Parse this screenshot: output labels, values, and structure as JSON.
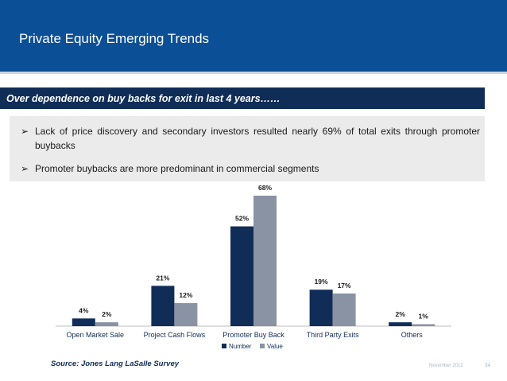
{
  "header": {
    "title": "Private Equity Emerging Trends"
  },
  "banner": {
    "text": "Over dependence on buy backs for exit in last 4 years……"
  },
  "bullets": [
    {
      "arrow": "➢",
      "text": "Lack of price discovery and secondary investors resulted nearly 69% of total exits through promoter buybacks"
    },
    {
      "arrow": "➢",
      "text": "Promoter buybacks are more predominant in commercial segments"
    }
  ],
  "chart_data": {
    "type": "bar",
    "categories": [
      "Open Market Sale",
      "Project Cash Flows",
      "Promoter Buy Back",
      "Third Party Exits",
      "Others"
    ],
    "series": [
      {
        "name": "Number",
        "values": [
          4,
          21,
          52,
          19,
          2
        ],
        "labels": [
          "4%",
          "21%",
          "52%",
          "19%",
          "2%"
        ],
        "color": "#0f2d57"
      },
      {
        "name": "Value",
        "values": [
          2,
          12,
          68,
          17,
          1
        ],
        "labels": [
          "2%",
          "12%",
          "68%",
          "17%",
          "1%"
        ],
        "color": "#8a93a3"
      }
    ],
    "ylim": [
      0,
      68
    ],
    "grid": false,
    "legend": "bottom-center"
  },
  "footer": {
    "source": "Source: Jones Lang LaSalle Survey",
    "date": "November 2012",
    "page": "34"
  }
}
